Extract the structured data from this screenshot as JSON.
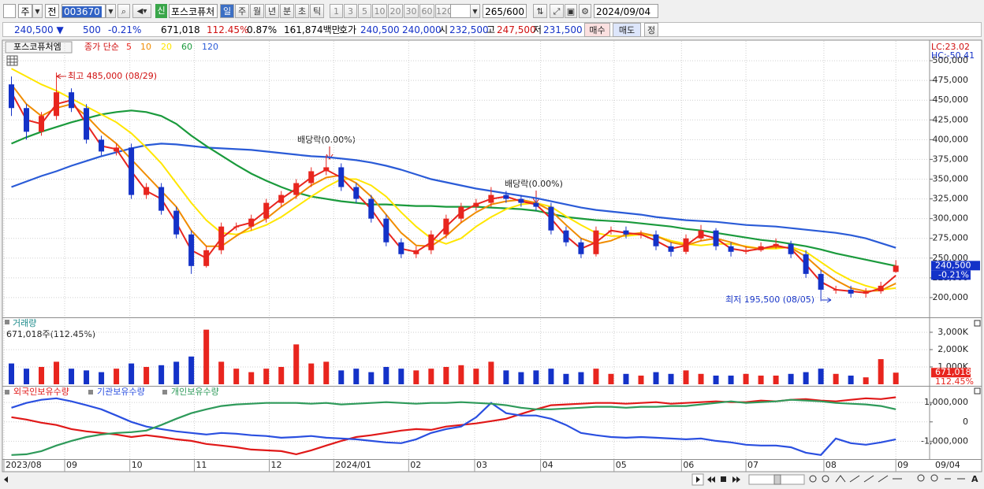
{
  "toolbar": {
    "market": "주",
    "mode": "전",
    "code": "003670",
    "badge": "신",
    "name": "포스코퓨처",
    "periods": [
      "일",
      "주",
      "월",
      "년",
      "분",
      "초",
      "틱"
    ],
    "intervals": [
      "1",
      "3",
      "5",
      "10",
      "20",
      "30",
      "60",
      "120"
    ],
    "count": "265/600",
    "date": "2024/09/04"
  },
  "quote": {
    "price": "240,500 ▼",
    "change": "500",
    "rate": "-0.21%",
    "volume": "671,018",
    "volume_ratio": "112.45%",
    "turnover": "0.87%",
    "amount": "161,874백만",
    "ask_label": "호가",
    "ask": "240,500",
    "bid": "240,000",
    "open_label": "시",
    "open": "232,500",
    "high_label": "고",
    "high": "247,500",
    "low_label": "저",
    "low": "231,500",
    "buy": "매수",
    "sell": "매도",
    "correct": "정"
  },
  "chart_data": [
    {
      "type": "candlestick",
      "title": "포스코퓨처엠",
      "ma_label": "종가 단순",
      "up_color": "#e8251e",
      "down_color": "#1432c8",
      "open": [
        470000,
        440000,
        410000,
        430000,
        460000,
        440000,
        400000,
        385000,
        390000,
        330000,
        340000,
        310000,
        280000,
        240000,
        260000,
        290000,
        290000,
        300000,
        320000,
        330000,
        345000,
        360000,
        365000,
        340000,
        325000,
        300000,
        270000,
        255000,
        260000,
        280000,
        300000,
        315000,
        320000,
        330000,
        325000,
        320000,
        315000,
        285000,
        270000,
        255000,
        285000,
        285000,
        280000,
        280000,
        265000,
        258000,
        275000,
        285000,
        265000,
        258000,
        260000,
        265000,
        268000,
        255000,
        230000,
        210000,
        210000,
        205000,
        208000,
        232500
      ],
      "high": [
        480000,
        445000,
        435000,
        485000,
        465000,
        445000,
        405000,
        395000,
        395000,
        345000,
        345000,
        315000,
        285000,
        265000,
        295000,
        295000,
        305000,
        325000,
        335000,
        350000,
        365000,
        380000,
        370000,
        345000,
        330000,
        305000,
        275000,
        265000,
        285000,
        305000,
        320000,
        325000,
        340000,
        335000,
        330000,
        325000,
        320000,
        290000,
        275000,
        290000,
        290000,
        290000,
        285000,
        285000,
        270000,
        280000,
        292000,
        288000,
        270000,
        265000,
        270000,
        275000,
        272000,
        260000,
        235000,
        215000,
        215000,
        212000,
        220000,
        247500
      ],
      "low": [
        430000,
        400000,
        405000,
        425000,
        435000,
        395000,
        380000,
        380000,
        325000,
        325000,
        305000,
        275000,
        230000,
        238000,
        255000,
        285000,
        285000,
        295000,
        315000,
        325000,
        340000,
        355000,
        335000,
        320000,
        295000,
        265000,
        250000,
        250000,
        255000,
        275000,
        295000,
        310000,
        315000,
        320000,
        315000,
        310000,
        280000,
        265000,
        250000,
        252000,
        280000,
        275000,
        275000,
        260000,
        252000,
        255000,
        272000,
        260000,
        252000,
        255000,
        258000,
        262000,
        250000,
        225000,
        195500,
        205000,
        200000,
        200000,
        205000,
        231500
      ],
      "close": [
        440000,
        410000,
        430000,
        460000,
        440000,
        400000,
        385000,
        390000,
        330000,
        340000,
        310000,
        280000,
        240000,
        260000,
        290000,
        290000,
        300000,
        320000,
        330000,
        345000,
        360000,
        365000,
        340000,
        325000,
        300000,
        270000,
        255000,
        260000,
        280000,
        300000,
        315000,
        320000,
        330000,
        325000,
        320000,
        315000,
        285000,
        270000,
        255000,
        285000,
        285000,
        280000,
        280000,
        265000,
        258000,
        275000,
        285000,
        265000,
        258000,
        260000,
        265000,
        268000,
        255000,
        230000,
        210000,
        210000,
        205000,
        208000,
        215000,
        240500
      ],
      "series": [
        {
          "name": "5",
          "color": "#e8251e",
          "values": [
            460000,
            425000,
            420000,
            445000,
            450000,
            420000,
            392000,
            388000,
            360000,
            335000,
            325000,
            295000,
            260000,
            250000,
            275000,
            290000,
            295000,
            310000,
            325000,
            338000,
            352000,
            362000,
            352000,
            332000,
            312000,
            285000,
            262000,
            258000,
            270000,
            290000,
            308000,
            318000,
            325000,
            328000,
            322000,
            318000,
            300000,
            278000,
            262000,
            270000,
            285000,
            282000,
            280000,
            272000,
            262000,
            266000,
            280000,
            275000,
            262000,
            259000,
            262000,
            266000,
            262000,
            242000,
            220000,
            210000,
            208000,
            206000,
            212000,
            228000
          ]
        },
        {
          "name": "10",
          "color": "#f08c00",
          "values": [
            470000,
            445000,
            430000,
            440000,
            445000,
            430000,
            410000,
            395000,
            375000,
            355000,
            335000,
            315000,
            285000,
            265000,
            265000,
            278000,
            290000,
            300000,
            315000,
            328000,
            342000,
            352000,
            355000,
            345000,
            328000,
            305000,
            282000,
            266000,
            265000,
            278000,
            295000,
            308000,
            318000,
            322000,
            324000,
            320000,
            310000,
            292000,
            275000,
            268000,
            272000,
            280000,
            282000,
            278000,
            270000,
            266000,
            272000,
            275000,
            270000,
            264000,
            262000,
            264000,
            263000,
            252000,
            235000,
            222000,
            212000,
            208000,
            209000,
            218000
          ]
        },
        {
          "name": "20",
          "color": "#ffe600",
          "values": [
            490000,
            480000,
            470000,
            462000,
            452000,
            442000,
            432000,
            422000,
            408000,
            390000,
            370000,
            345000,
            320000,
            298000,
            282000,
            280000,
            285000,
            292000,
            302000,
            315000,
            328000,
            340000,
            350000,
            350000,
            342000,
            328000,
            308000,
            290000,
            275000,
            268000,
            275000,
            290000,
            302000,
            312000,
            318000,
            320000,
            315000,
            303000,
            292000,
            282000,
            278000,
            278000,
            280000,
            278000,
            272000,
            268000,
            266000,
            268000,
            268000,
            265000,
            262000,
            262000,
            264000,
            258000,
            245000,
            232000,
            222000,
            215000,
            210000,
            212000
          ]
        },
        {
          "name": "60",
          "color": "#1a9a3c",
          "values": [
            395000,
            403000,
            410000,
            416000,
            422000,
            427000,
            432000,
            435000,
            437000,
            435000,
            430000,
            420000,
            405000,
            392000,
            380000,
            368000,
            357000,
            348000,
            340000,
            333000,
            328000,
            325000,
            322000,
            320000,
            318000,
            318000,
            317000,
            316000,
            316000,
            315000,
            315000,
            315000,
            314000,
            313000,
            312000,
            310000,
            306000,
            302000,
            300000,
            298000,
            297000,
            296000,
            294000,
            292000,
            290000,
            287000,
            285000,
            282000,
            279000,
            276000,
            273000,
            271000,
            268000,
            265000,
            261000,
            256000,
            252000,
            248000,
            244000,
            240000
          ]
        },
        {
          "name": "120",
          "color": "#2a5bd7",
          "values": [
            340000,
            347000,
            354000,
            360000,
            367000,
            373000,
            379000,
            384000,
            389000,
            393000,
            395000,
            394000,
            392000,
            390000,
            389000,
            388000,
            387000,
            385000,
            383000,
            381000,
            379000,
            378000,
            376000,
            374000,
            371000,
            367000,
            362000,
            356000,
            350000,
            346000,
            342000,
            338000,
            335000,
            332000,
            329000,
            326000,
            322000,
            318000,
            314000,
            311000,
            309000,
            307000,
            305000,
            302000,
            300000,
            298000,
            297000,
            296000,
            294000,
            292000,
            291000,
            290000,
            288000,
            286000,
            284000,
            282000,
            279000,
            275000,
            269000,
            263000
          ]
        }
      ],
      "ylim": [
        175000,
        525000
      ],
      "yticks": [
        {
          "value": 200000,
          "label": "200,000"
        },
        {
          "value": 225000,
          "label": "225,000"
        },
        {
          "value": 250000,
          "label": "250,000"
        },
        {
          "value": 275000,
          "label": "275,000"
        },
        {
          "value": 300000,
          "label": "300,000"
        },
        {
          "value": 325000,
          "label": "325,000"
        },
        {
          "value": 350000,
          "label": "350,000"
        },
        {
          "value": 375000,
          "label": "375,000"
        },
        {
          "value": 400000,
          "label": "400,000"
        },
        {
          "value": 425000,
          "label": "425,000"
        },
        {
          "value": 450000,
          "label": "450,000"
        },
        {
          "value": 475000,
          "label": "475,000"
        },
        {
          "value": 500000,
          "label": "500,000"
        }
      ],
      "grid": true,
      "annotations": [
        "최고 485,000 (08/29)",
        "배당락(0.00%)",
        "배당락(0.00%)",
        "최저 195,500 (08/05)"
      ],
      "lc": "LC:23.02",
      "hc": "HC:-50.41",
      "last_label": "240,500",
      "last_rate": "-0.21%"
    },
    {
      "type": "bar",
      "title": "거래량",
      "subtitle": "671,018주(112.45%)",
      "values": [
        1200000,
        900000,
        1000000,
        1300000,
        900000,
        800000,
        700000,
        900000,
        1200000,
        1000000,
        1100000,
        1300000,
        1600000,
        3150000,
        1300000,
        900000,
        700000,
        900000,
        1000000,
        2300000,
        1200000,
        1300000,
        800000,
        900000,
        700000,
        1000000,
        900000,
        800000,
        900000,
        1000000,
        1100000,
        900000,
        1300000,
        800000,
        700000,
        800000,
        900000,
        600000,
        700000,
        900000,
        600000,
        600000,
        500000,
        700000,
        600000,
        800000,
        600000,
        500000,
        500000,
        600000,
        500000,
        500000,
        600000,
        700000,
        900000,
        600000,
        500000,
        400000,
        1450000,
        671018
      ],
      "ylim": [
        0,
        3770000
      ],
      "yticks": [
        {
          "value": 1000000,
          "label": "1,000K"
        },
        {
          "value": 2000000,
          "label": "2,000K"
        },
        {
          "value": 3000000,
          "label": "3,000K"
        }
      ],
      "grid": true,
      "last_label": "671,018",
      "last_ratio": "112.45%"
    },
    {
      "type": "line",
      "series": [
        {
          "name": "외국인보유수량",
          "color": "#e01818",
          "values": [
            245000,
            120000,
            -40000,
            -160000,
            -370000,
            -490000,
            -570000,
            -650000,
            -780000,
            -690000,
            -780000,
            -900000,
            -980000,
            -1140000,
            -1220000,
            -1310000,
            -1430000,
            -1470000,
            -1510000,
            -1670000,
            -1470000,
            -1220000,
            -980000,
            -780000,
            -690000,
            -570000,
            -450000,
            -370000,
            -410000,
            -240000,
            -160000,
            -80000,
            40000,
            160000,
            410000,
            650000,
            860000,
            900000,
            940000,
            980000,
            980000,
            940000,
            980000,
            1020000,
            940000,
            980000,
            1020000,
            1060000,
            1020000,
            1020000,
            1100000,
            1060000,
            1140000,
            1180000,
            1100000,
            1060000,
            1140000,
            1220000,
            1180000,
            1270000
          ]
        },
        {
          "name": "기관보유수량",
          "color": "#2a4fe0",
          "values": [
            730000,
            980000,
            1140000,
            1220000,
            1060000,
            860000,
            650000,
            330000,
            0,
            -240000,
            -370000,
            -490000,
            -570000,
            -650000,
            -570000,
            -610000,
            -690000,
            -730000,
            -820000,
            -780000,
            -730000,
            -820000,
            -860000,
            -900000,
            -980000,
            -1060000,
            -1100000,
            -900000,
            -570000,
            -370000,
            -240000,
            240000,
            980000,
            450000,
            330000,
            330000,
            160000,
            -160000,
            -570000,
            -690000,
            -780000,
            -820000,
            -780000,
            -820000,
            -860000,
            -900000,
            -860000,
            -980000,
            -1060000,
            -1180000,
            -1220000,
            -1220000,
            -1310000,
            -1590000,
            -1710000,
            -860000,
            -1100000,
            -1180000,
            -1060000,
            -900000
          ]
        },
        {
          "name": "개인보유수량",
          "color": "#2e9a5a",
          "values": [
            -1710000,
            -1670000,
            -1510000,
            -1220000,
            -980000,
            -780000,
            -650000,
            -570000,
            -530000,
            -450000,
            -160000,
            160000,
            450000,
            650000,
            820000,
            900000,
            940000,
            980000,
            980000,
            980000,
            940000,
            980000,
            900000,
            940000,
            980000,
            1020000,
            980000,
            940000,
            980000,
            980000,
            1020000,
            980000,
            940000,
            860000,
            730000,
            650000,
            650000,
            690000,
            730000,
            780000,
            780000,
            730000,
            780000,
            780000,
            820000,
            820000,
            900000,
            980000,
            1060000,
            980000,
            1020000,
            1060000,
            1140000,
            1100000,
            1060000,
            980000,
            940000,
            900000,
            820000,
            650000
          ]
        }
      ],
      "ylim": [
        -1920000,
        1780000
      ],
      "yticks": [
        {
          "value": -1000000,
          "label": "-1,000,000"
        },
        0,
        {
          "value": 1000000,
          "label": "1,000,000"
        }
      ],
      "grid": true,
      "xlim": [
        0,
        61.7
      ],
      "xticks": [
        {
          "value": 0,
          "label": "2023/08"
        },
        {
          "value": 4.05,
          "label": "09"
        },
        {
          "value": 8.4,
          "label": "10"
        },
        {
          "value": 12.7,
          "label": "11"
        },
        {
          "value": 17.7,
          "label": "12"
        },
        {
          "value": 22,
          "label": "2024/01"
        },
        {
          "value": 27,
          "label": "02"
        },
        {
          "value": 31.4,
          "label": "03"
        },
        {
          "value": 35.8,
          "label": "04"
        },
        {
          "value": 40.7,
          "label": "05"
        },
        {
          "value": 45.2,
          "label": "06"
        },
        {
          "value": 49.5,
          "label": "07"
        },
        {
          "value": 54.7,
          "label": "08"
        },
        {
          "value": 59.5,
          "label": "09"
        }
      ],
      "x_end_label": "09/04"
    }
  ]
}
